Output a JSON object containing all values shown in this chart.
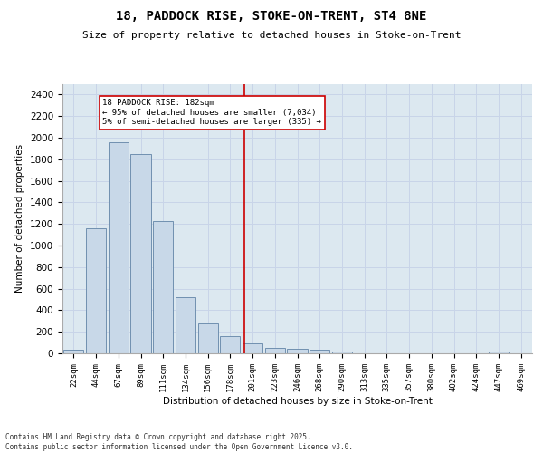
{
  "title1": "18, PADDOCK RISE, STOKE-ON-TRENT, ST4 8NE",
  "title2": "Size of property relative to detached houses in Stoke-on-Trent",
  "xlabel": "Distribution of detached houses by size in Stoke-on-Trent",
  "ylabel": "Number of detached properties",
  "categories": [
    "22sqm",
    "44sqm",
    "67sqm",
    "89sqm",
    "111sqm",
    "134sqm",
    "156sqm",
    "178sqm",
    "201sqm",
    "223sqm",
    "246sqm",
    "268sqm",
    "290sqm",
    "313sqm",
    "335sqm",
    "357sqm",
    "380sqm",
    "402sqm",
    "424sqm",
    "447sqm",
    "469sqm"
  ],
  "values": [
    30,
    1160,
    1960,
    1850,
    1230,
    520,
    275,
    160,
    90,
    50,
    42,
    30,
    18,
    0,
    0,
    0,
    0,
    0,
    0,
    18,
    0
  ],
  "bar_color": "#c8d8e8",
  "bar_edgecolor": "#7090b0",
  "vline_x": 7.62,
  "vline_color": "#cc0000",
  "annotation_text": "18 PADDOCK RISE: 182sqm\n← 95% of detached houses are smaller (7,034)\n5% of semi-detached houses are larger (335) →",
  "annotation_box_facecolor": "#ffffff",
  "annotation_box_edgecolor": "#cc0000",
  "ylim": [
    0,
    2500
  ],
  "yticks": [
    0,
    200,
    400,
    600,
    800,
    1000,
    1200,
    1400,
    1600,
    1800,
    2000,
    2200,
    2400
  ],
  "grid_color": "#c8d4e8",
  "bg_color": "#dce8f0",
  "footer1": "Contains HM Land Registry data © Crown copyright and database right 2025.",
  "footer2": "Contains public sector information licensed under the Open Government Licence v3.0."
}
